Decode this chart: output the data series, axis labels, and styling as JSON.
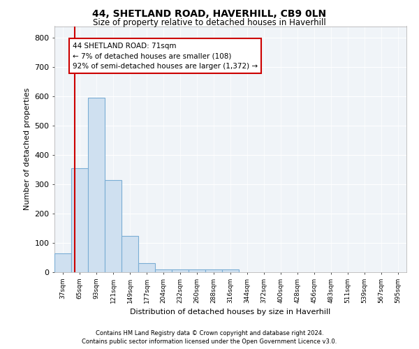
{
  "title1": "44, SHETLAND ROAD, HAVERHILL, CB9 0LN",
  "title2": "Size of property relative to detached houses in Haverhill",
  "xlabel": "Distribution of detached houses by size in Haverhill",
  "ylabel": "Number of detached properties",
  "bar_color": "#cfe0f0",
  "bar_edge_color": "#7aadd4",
  "bin_labels": [
    "37sqm",
    "65sqm",
    "93sqm",
    "121sqm",
    "149sqm",
    "177sqm",
    "204sqm",
    "232sqm",
    "260sqm",
    "288sqm",
    "316sqm",
    "344sqm",
    "372sqm",
    "400sqm",
    "428sqm",
    "456sqm",
    "483sqm",
    "511sqm",
    "539sqm",
    "567sqm",
    "595sqm"
  ],
  "bin_edges": [
    37,
    65,
    93,
    121,
    149,
    177,
    204,
    232,
    260,
    288,
    316,
    344,
    372,
    400,
    428,
    456,
    483,
    511,
    539,
    567,
    595
  ],
  "bar_heights": [
    65,
    355,
    595,
    315,
    125,
    30,
    10,
    10,
    10,
    10,
    10,
    0,
    0,
    0,
    0,
    0,
    0,
    0,
    0,
    0
  ],
  "property_line_x": 71,
  "annotation_line1": "44 SHETLAND ROAD: 71sqm",
  "annotation_line2": "← 7% of detached houses are smaller (108)",
  "annotation_line3": "92% of semi-detached houses are larger (1,372) →",
  "annotation_box_color": "#ffffff",
  "annotation_edge_color": "#cc0000",
  "annotation_text_color": "#000000",
  "red_line_color": "#cc0000",
  "ylim": [
    0,
    840
  ],
  "yticks": [
    0,
    100,
    200,
    300,
    400,
    500,
    600,
    700,
    800
  ],
  "footer1": "Contains HM Land Registry data © Crown copyright and database right 2024.",
  "footer2": "Contains public sector information licensed under the Open Government Licence v3.0.",
  "background_color": "#ffffff",
  "plot_bg_color": "#f0f4f8",
  "grid_color": "#ffffff"
}
